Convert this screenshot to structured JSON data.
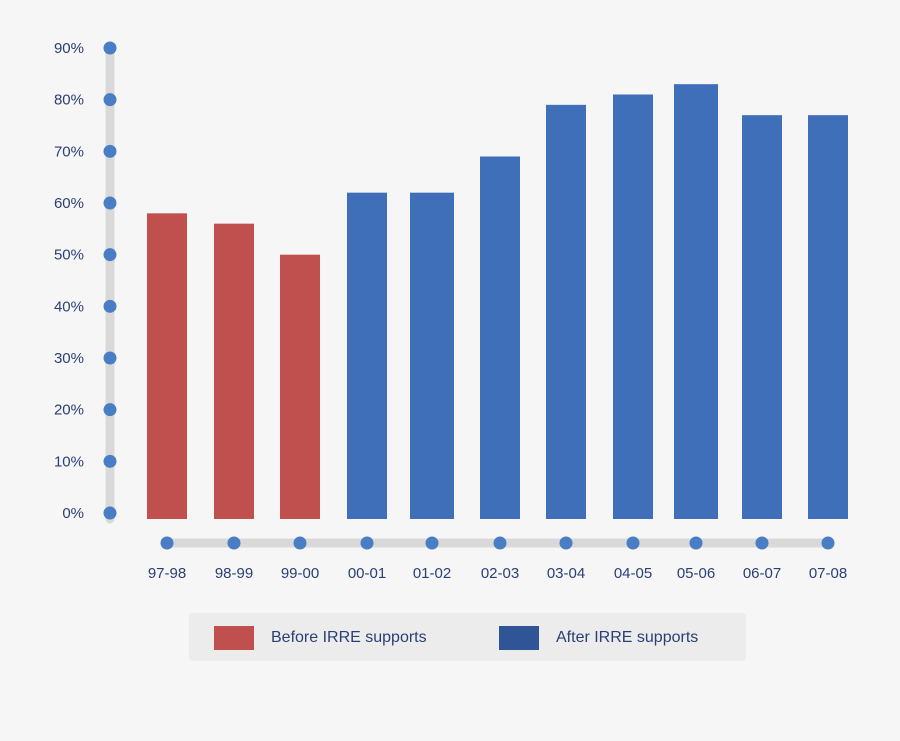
{
  "chart_data": {
    "type": "bar",
    "title": "",
    "xlabel": "",
    "ylabel": "",
    "ylim": [
      0,
      90
    ],
    "yticks": [
      "0%",
      "10%",
      "20%",
      "30%",
      "40%",
      "50%",
      "60%",
      "70%",
      "80%",
      "90%"
    ],
    "categories": [
      "97-98",
      "98-99",
      "99-00",
      "00-01",
      "01-02",
      "02-03",
      "03-04",
      "04-05",
      "05-06",
      "06-07",
      "07-08"
    ],
    "values": [
      58,
      56,
      50,
      62,
      62,
      69,
      79,
      81,
      83,
      77,
      77
    ],
    "groups": [
      "before",
      "before",
      "before",
      "after",
      "after",
      "after",
      "after",
      "after",
      "after",
      "after",
      "after"
    ],
    "legend": [
      {
        "key": "before",
        "label": "Before IRRE supports",
        "color": "#c0504d"
      },
      {
        "key": "after",
        "label": "After IRRE supports",
        "color": "#3f6fb8"
      }
    ],
    "legend_position": "bottom-center",
    "grid": false
  },
  "colors": {
    "axis": "#d9d9d9",
    "tick_dot": "#4a7ec4",
    "legend_after_swatch": "#2f5597"
  }
}
